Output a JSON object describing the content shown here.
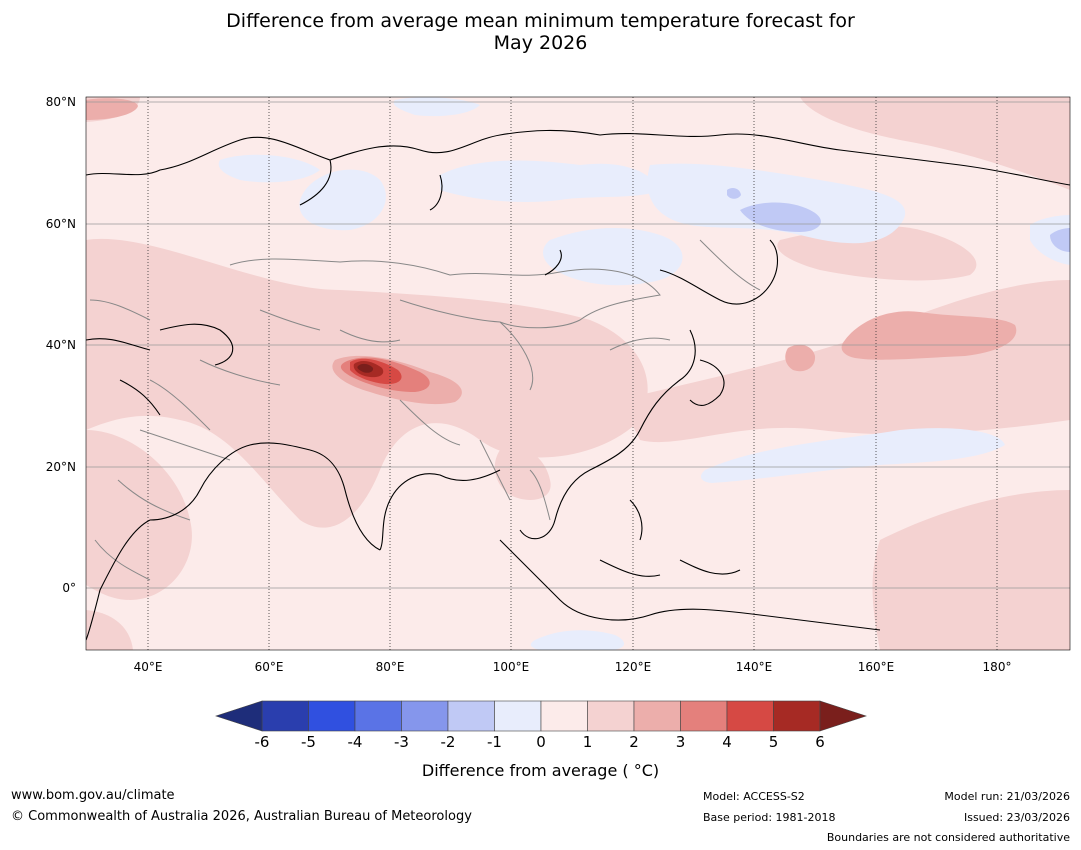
{
  "title": {
    "line1": "Difference from average mean minimum temperature forecast for",
    "line2": "May 2026"
  },
  "map": {
    "lat_labels": [
      "80°N",
      "60°N",
      "40°N",
      "20°N",
      "0°"
    ],
    "lon_labels": [
      "40°E",
      "60°E",
      "80°E",
      "100°E",
      "120°E",
      "140°E",
      "160°E",
      "180°"
    ],
    "colors": {
      "below": [
        "#1e2d7a",
        "#2a3eae",
        "#3050e0",
        "#5a73e6",
        "#8596ec",
        "#c0c9f5",
        "#e8edfc"
      ],
      "above": [
        "#fcebea",
        "#f4d2d1",
        "#ecaeab",
        "#e4807c",
        "#d64944",
        "#a62a24",
        "#7a1f1c"
      ],
      "background": "#fcebea"
    }
  },
  "colorbar": {
    "ticks": [
      "-6",
      "-5",
      "-4",
      "-3",
      "-2",
      "-1",
      "0",
      "1",
      "2",
      "3",
      "4",
      "5",
      "6"
    ],
    "label": "Difference from average ( °C)"
  },
  "footer": {
    "url": "www.bom.gov.au/climate",
    "copyright": "© Commonwealth of Australia 2026, Australian Bureau of Meteorology",
    "model": "Model: ACCESS-S2",
    "base_period": "Base period: 1981-2018",
    "model_run": "Model run: 21/03/2026",
    "issued": "Issued: 23/03/2026",
    "disclaimer": "Boundaries are not considered authoritative"
  }
}
